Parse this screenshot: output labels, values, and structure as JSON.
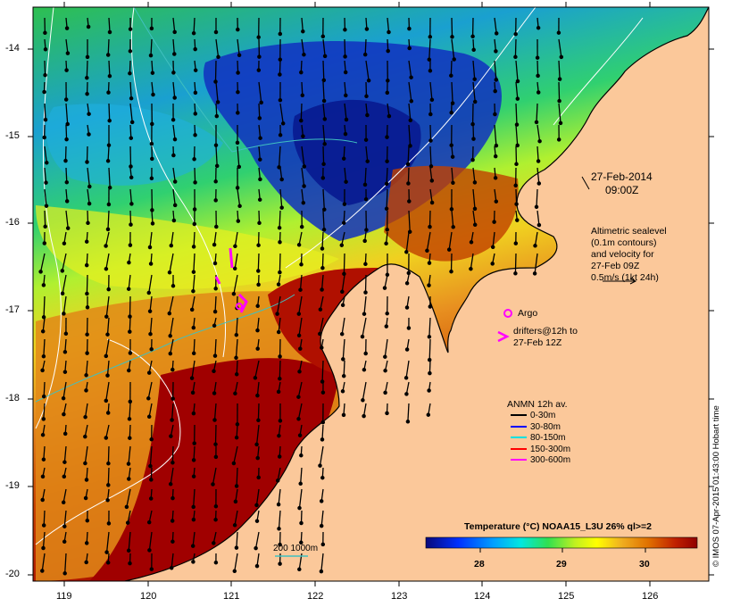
{
  "map": {
    "lon_ticks": [
      "119",
      "120",
      "121",
      "122",
      "123",
      "124",
      "125",
      "126"
    ],
    "lat_ticks": [
      "-14",
      "-15",
      "-16",
      "-17",
      "-18",
      "-19",
      "-20"
    ],
    "colors": {
      "land": "#fbc89a",
      "cold": "#0a1e8c",
      "warm": "#9a0000",
      "coast": "#ffffff"
    }
  },
  "annotations": {
    "date": "27-Feb-2014",
    "time": "09:00Z",
    "altimetry": [
      "Altimetric sealevel",
      "(0.1m contours)",
      "and velocity for",
      "27-Feb 09Z",
      "0.5m/s (1kt 24h)"
    ],
    "argo_label": "Argo",
    "drifters": [
      "drifters@12h to",
      "27-Feb 12Z"
    ],
    "depth_contours": "200  1000m"
  },
  "legend": {
    "title": "ANMN 12h av.",
    "items": [
      {
        "label": "0-30m",
        "color": "#000000"
      },
      {
        "label": "30-80m",
        "color": "#0000ff"
      },
      {
        "label": "80-150m",
        "color": "#00e0e0"
      },
      {
        "label": "150-300m",
        "color": "#ff0000"
      },
      {
        "label": "300-600m",
        "color": "#ff00ff"
      }
    ]
  },
  "colorbar": {
    "title": "Temperature (°C) NOAA15_L3U 26% ql>=2",
    "tick_labels": [
      "28",
      "29",
      "30"
    ]
  },
  "credit": "© IMOS 07-Apr-2015 01:43:00 Hobart time"
}
